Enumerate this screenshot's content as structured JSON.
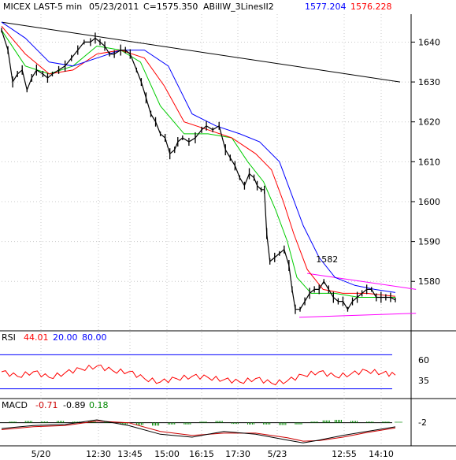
{
  "header": {
    "symbol": "MICEX LAST-5 min",
    "date": "05/23/2011",
    "close": "C=1575.350",
    "indicator": "ABillW_3LinesII2",
    "ind_val1": "1577.204",
    "ind_val2": "1576.228"
  },
  "colors": {
    "background": "#ffffff",
    "price": "#000000",
    "line_green": "#00cc00",
    "line_red": "#ff0000",
    "line_blue": "#0000ff",
    "trendline": "#000000",
    "channel": "#ff00ff",
    "rsi": "#ff0000",
    "rsi_levels": "#0000ff",
    "macd_line": "#000000",
    "macd_signal": "#cc0000",
    "macd_hist": "#008800",
    "grid": "#c8c8c8"
  },
  "annotation": {
    "label": "1582"
  },
  "rsi_panel": {
    "title": "RSI",
    "value": "44.01",
    "low": "20.00",
    "high": "80.00",
    "ticks": [
      "60",
      "35"
    ]
  },
  "macd_panel": {
    "title": "MACD",
    "macd_value": "-0.71",
    "signal_value": "-0.89",
    "hist_value": "0.18",
    "ticks": [
      "-2"
    ]
  },
  "chart_data": {
    "type": "line",
    "y_ticks": [
      1640,
      1630,
      1620,
      1610,
      1600,
      1590,
      1580
    ],
    "ylim": [
      1568,
      1647
    ],
    "x_ticks": [
      "5/20",
      "12:30",
      "13:45",
      "15:00",
      "16:15",
      "17:30",
      "5/23",
      "12:55",
      "14:10"
    ],
    "price_close_points": [
      [
        0,
        1643
      ],
      [
        8,
        1638
      ],
      [
        14,
        1630
      ],
      [
        20,
        1632
      ],
      [
        26,
        1633
      ],
      [
        32,
        1628
      ],
      [
        38,
        1631
      ],
      [
        44,
        1633
      ],
      [
        52,
        1632
      ],
      [
        58,
        1631
      ],
      [
        64,
        1632
      ],
      [
        72,
        1633
      ],
      [
        80,
        1634
      ],
      [
        88,
        1636
      ],
      [
        96,
        1638
      ],
      [
        104,
        1640
      ],
      [
        112,
        1640
      ],
      [
        118,
        1641
      ],
      [
        124,
        1640
      ],
      [
        130,
        1639
      ],
      [
        136,
        1637
      ],
      [
        142,
        1637
      ],
      [
        150,
        1638
      ],
      [
        156,
        1638
      ],
      [
        162,
        1637
      ],
      [
        170,
        1633
      ],
      [
        176,
        1630
      ],
      [
        182,
        1626
      ],
      [
        188,
        1622
      ],
      [
        194,
        1620
      ],
      [
        200,
        1617
      ],
      [
        206,
        1616
      ],
      [
        212,
        1612
      ],
      [
        218,
        1613
      ],
      [
        222,
        1615
      ],
      [
        228,
        1616
      ],
      [
        236,
        1615
      ],
      [
        244,
        1616
      ],
      [
        252,
        1618
      ],
      [
        258,
        1619
      ],
      [
        266,
        1618
      ],
      [
        274,
        1619
      ],
      [
        282,
        1613
      ],
      [
        288,
        1611
      ],
      [
        294,
        1609
      ],
      [
        300,
        1606
      ],
      [
        306,
        1604
      ],
      [
        312,
        1607
      ],
      [
        318,
        1606
      ],
      [
        322,
        1604
      ],
      [
        327,
        1603
      ],
      [
        331,
        1603
      ],
      [
        334,
        1592
      ],
      [
        338,
        1585
      ],
      [
        344,
        1586
      ],
      [
        350,
        1587
      ],
      [
        356,
        1588
      ],
      [
        362,
        1584
      ],
      [
        366,
        1578
      ],
      [
        370,
        1573
      ],
      [
        376,
        1573
      ],
      [
        382,
        1575
      ],
      [
        388,
        1577
      ],
      [
        394,
        1578
      ],
      [
        400,
        1578
      ],
      [
        406,
        1580
      ],
      [
        412,
        1578
      ],
      [
        418,
        1576
      ],
      [
        424,
        1575
      ],
      [
        430,
        1575
      ],
      [
        436,
        1573
      ],
      [
        442,
        1575
      ],
      [
        448,
        1576
      ],
      [
        454,
        1577
      ],
      [
        460,
        1578
      ],
      [
        466,
        1578
      ],
      [
        472,
        1576
      ],
      [
        478,
        1576
      ],
      [
        484,
        1576
      ],
      [
        490,
        1576
      ],
      [
        496,
        1575.35
      ]
    ],
    "series": [
      {
        "color_key": "line_green",
        "points": [
          [
            0,
            1643
          ],
          [
            30,
            1634
          ],
          [
            60,
            1632
          ],
          [
            90,
            1634
          ],
          [
            120,
            1639
          ],
          [
            150,
            1638
          ],
          [
            175,
            1635
          ],
          [
            200,
            1624
          ],
          [
            230,
            1617
          ],
          [
            260,
            1617
          ],
          [
            290,
            1616
          ],
          [
            310,
            1610
          ],
          [
            330,
            1605
          ],
          [
            345,
            1598
          ],
          [
            360,
            1590
          ],
          [
            372,
            1581
          ],
          [
            390,
            1577
          ],
          [
            420,
            1577
          ],
          [
            450,
            1576
          ],
          [
            470,
            1576
          ],
          [
            496,
            1576
          ]
        ]
      },
      {
        "color_key": "line_red",
        "points": [
          [
            0,
            1644
          ],
          [
            30,
            1637
          ],
          [
            60,
            1632
          ],
          [
            90,
            1633
          ],
          [
            120,
            1637
          ],
          [
            150,
            1638
          ],
          [
            180,
            1636
          ],
          [
            205,
            1629
          ],
          [
            230,
            1620
          ],
          [
            260,
            1618
          ],
          [
            290,
            1616
          ],
          [
            320,
            1612
          ],
          [
            340,
            1608
          ],
          [
            355,
            1600
          ],
          [
            368,
            1592
          ],
          [
            385,
            1583
          ],
          [
            405,
            1578
          ],
          [
            430,
            1577
          ],
          [
            460,
            1577
          ],
          [
            496,
            1576.228
          ]
        ]
      },
      {
        "color_key": "line_blue",
        "points": [
          [
            0,
            1645
          ],
          [
            30,
            1641
          ],
          [
            60,
            1635
          ],
          [
            90,
            1634
          ],
          [
            120,
            1636
          ],
          [
            150,
            1638
          ],
          [
            180,
            1638
          ],
          [
            210,
            1634
          ],
          [
            240,
            1622
          ],
          [
            270,
            1619
          ],
          [
            300,
            1617
          ],
          [
            325,
            1615
          ],
          [
            350,
            1610
          ],
          [
            365,
            1602
          ],
          [
            380,
            1594
          ],
          [
            400,
            1586
          ],
          [
            420,
            1581
          ],
          [
            445,
            1579
          ],
          [
            470,
            1578
          ],
          [
            496,
            1577.204
          ]
        ]
      }
    ],
    "trendline": [
      [
        0,
        1645
      ],
      [
        502,
        1630
      ]
    ],
    "channel_upper": [
      [
        385,
        1582
      ],
      [
        522,
        1578
      ]
    ],
    "channel_lower": [
      [
        375,
        1571
      ],
      [
        522,
        1572
      ]
    ],
    "annotation_point": [
      410,
      1584
    ],
    "rsi": {
      "ylim": [
        0,
        100
      ],
      "levels": [
        80,
        20
      ],
      "points": [
        [
          0,
          50
        ],
        [
          20,
          42
        ],
        [
          40,
          50
        ],
        [
          60,
          40
        ],
        [
          80,
          48
        ],
        [
          100,
          55
        ],
        [
          120,
          60
        ],
        [
          140,
          52
        ],
        [
          160,
          50
        ],
        [
          180,
          38
        ],
        [
          200,
          32
        ],
        [
          220,
          38
        ],
        [
          240,
          42
        ],
        [
          260,
          40
        ],
        [
          280,
          36
        ],
        [
          300,
          32
        ],
        [
          320,
          38
        ],
        [
          340,
          30
        ],
        [
          360,
          34
        ],
        [
          380,
          44
        ],
        [
          400,
          50
        ],
        [
          420,
          42
        ],
        [
          440,
          46
        ],
        [
          460,
          52
        ],
        [
          480,
          48
        ],
        [
          496,
          44.01
        ]
      ]
    },
    "macd": {
      "ylim": [
        -4,
        2
      ],
      "macd_points": [
        [
          0,
          -1
        ],
        [
          40,
          -0.5
        ],
        [
          80,
          -0.3
        ],
        [
          120,
          0.5
        ],
        [
          160,
          -0.5
        ],
        [
          200,
          -2
        ],
        [
          240,
          -2.5
        ],
        [
          280,
          -1.5
        ],
        [
          320,
          -2
        ],
        [
          360,
          -3
        ],
        [
          380,
          -3.5
        ],
        [
          400,
          -3
        ],
        [
          430,
          -2.2
        ],
        [
          460,
          -1.5
        ],
        [
          496,
          -0.71
        ]
      ],
      "signal_points": [
        [
          0,
          -1.2
        ],
        [
          40,
          -0.7
        ],
        [
          80,
          -0.5
        ],
        [
          120,
          0.3
        ],
        [
          160,
          0
        ],
        [
          200,
          -1.5
        ],
        [
          240,
          -2.2
        ],
        [
          280,
          -1.8
        ],
        [
          320,
          -1.8
        ],
        [
          360,
          -2.6
        ],
        [
          380,
          -3.2
        ],
        [
          400,
          -3.1
        ],
        [
          430,
          -2.5
        ],
        [
          460,
          -1.7
        ],
        [
          496,
          -0.89
        ]
      ],
      "hist": [
        [
          10,
          0.2
        ],
        [
          30,
          0.3
        ],
        [
          50,
          0.2
        ],
        [
          70,
          0.3
        ],
        [
          90,
          0.2
        ],
        [
          110,
          0.3
        ],
        [
          130,
          0.2
        ],
        [
          150,
          -0.3
        ],
        [
          170,
          -0.4
        ],
        [
          190,
          -0.5
        ],
        [
          210,
          -0.3
        ],
        [
          230,
          -0.3
        ],
        [
          250,
          0.2
        ],
        [
          270,
          0.3
        ],
        [
          290,
          -0.2
        ],
        [
          310,
          -0.3
        ],
        [
          330,
          -0.3
        ],
        [
          350,
          -0.4
        ],
        [
          370,
          -0.3
        ],
        [
          390,
          0.2
        ],
        [
          405,
          0.4
        ],
        [
          420,
          0.5
        ],
        [
          440,
          0.3
        ],
        [
          460,
          0.2
        ],
        [
          480,
          0.2
        ],
        [
          496,
          0.18
        ]
      ]
    }
  }
}
